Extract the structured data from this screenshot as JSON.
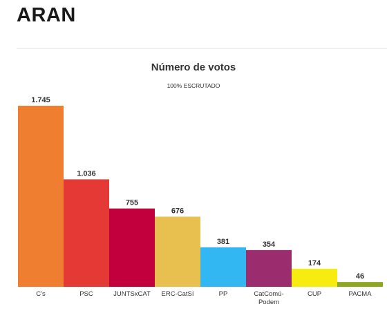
{
  "header": {
    "region": "ARAN"
  },
  "chart_data": {
    "type": "bar",
    "title": "Número de votos",
    "subtitle_pct": "100%",
    "subtitle_text": "ESCRUTADO",
    "categories": [
      "C's",
      "PSC",
      "JUNTSxCAT",
      "ERC-CatSí",
      "PP",
      "CatComú-Podem",
      "CUP",
      "PACMA"
    ],
    "category_lines": [
      [
        "C's"
      ],
      [
        "PSC"
      ],
      [
        "JUNTSxCAT"
      ],
      [
        "ERC-CatSí"
      ],
      [
        "PP"
      ],
      [
        "CatComú-",
        "Podem"
      ],
      [
        "CUP"
      ],
      [
        "PACMA"
      ]
    ],
    "values": [
      1745,
      1036,
      755,
      676,
      381,
      354,
      174,
      46
    ],
    "value_labels": [
      "1.745",
      "1.036",
      "755",
      "676",
      "381",
      "354",
      "174",
      "46"
    ],
    "colors": [
      "#f07e30",
      "#e53935",
      "#c2003d",
      "#e8c04f",
      "#33b7f2",
      "#9b2d6e",
      "#f7ec10",
      "#8ea823"
    ],
    "ylim": [
      0,
      1745
    ],
    "grid": false,
    "legend": "none"
  }
}
